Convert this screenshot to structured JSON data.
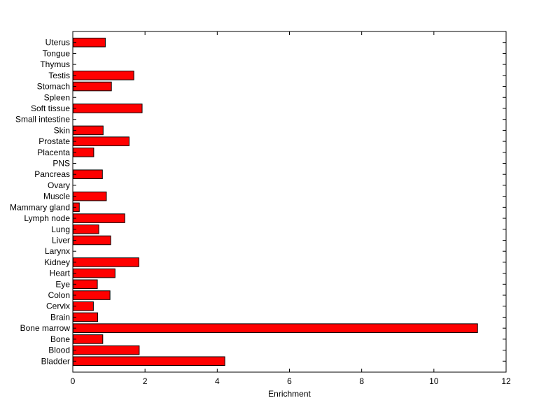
{
  "chart_data": {
    "type": "bar",
    "orientation": "horizontal",
    "title": "",
    "xlabel": "Enrichment",
    "ylabel": "",
    "xlim": [
      0,
      12
    ],
    "xticks": [
      0,
      2,
      4,
      6,
      8,
      10,
      12
    ],
    "grid": false,
    "bar_color": "#ff0000",
    "edge_color": "#000000",
    "categories": [
      "Bladder",
      "Blood",
      "Bone",
      "Bone marrow",
      "Brain",
      "Cervix",
      "Colon",
      "Eye",
      "Heart",
      "Kidney",
      "Larynx",
      "Liver",
      "Lung",
      "Lymph node",
      "Mammary gland",
      "Muscle",
      "Ovary",
      "Pancreas",
      "PNS",
      "Placenta",
      "Prostate",
      "Skin",
      "Small intestine",
      "Soft tissue",
      "Spleen",
      "Stomach",
      "Testis",
      "Thymus",
      "Tongue",
      "Uterus"
    ],
    "values": [
      4.2,
      1.83,
      0.82,
      11.2,
      0.68,
      0.56,
      1.02,
      0.67,
      1.16,
      1.82,
      0,
      1.04,
      0.71,
      1.43,
      0.17,
      0.92,
      0,
      0.81,
      0,
      0.57,
      1.55,
      0.83,
      0,
      1.91,
      0,
      1.06,
      1.68,
      0,
      0,
      0.89
    ]
  }
}
